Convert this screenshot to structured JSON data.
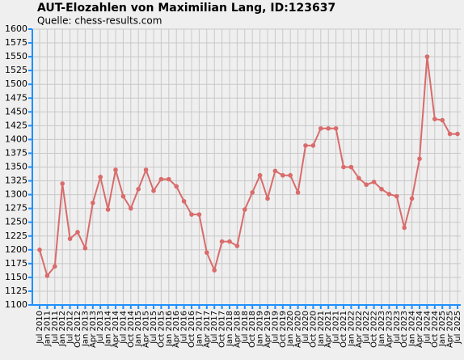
{
  "chart_data": {
    "type": "line",
    "title": "AUT-Elozahlen von Maximilian Lang, ID:123637",
    "subtitle": "Quelle: chess-results.com",
    "categories": [
      "Jul 2010",
      "Jan 2011",
      "Jul 2011",
      "Jan 2012",
      "Jul 2012",
      "Oct 2012",
      "Jan 2013",
      "Apr 2013",
      "Jul 2013",
      "Jan 2014",
      "Apr 2014",
      "Jul 2014",
      "Oct 2014",
      "Jan 2015",
      "Apr 2015",
      "Jul 2015",
      "Oct 2015",
      "Jan 2016",
      "Apr 2016",
      "Jul 2016",
      "Oct 2016",
      "Jan 2017",
      "Apr 2017",
      "Jul 2017",
      "Oct 2017",
      "Jan 2018",
      "Apr 2018",
      "Jul 2018",
      "Oct 2018",
      "Jan 2019",
      "Apr 2019",
      "Jul 2019",
      "Oct 2019",
      "Jan 2020",
      "Apr 2020",
      "Jul 2020",
      "Oct 2020",
      "Jan 2021",
      "Apr 2021",
      "Jul 2021",
      "Oct 2021",
      "Jan 2022",
      "Apr 2022",
      "Jul 2022",
      "Oct 2022",
      "Jan 2023",
      "Apr 2023",
      "Jul 2023",
      "Oct 2023",
      "Jan 2024",
      "Apr 2024",
      "Jul 2024",
      "Oct 2024",
      "Jan 2025",
      "Apr 2025",
      "Jul 2025"
    ],
    "values": [
      1200,
      1153,
      1170,
      1320,
      1220,
      1232,
      1203,
      1285,
      1332,
      1273,
      1345,
      1297,
      1275,
      1310,
      1345,
      1307,
      1328,
      1328,
      1315,
      1288,
      1264,
      1264,
      1195,
      1163,
      1215,
      1215,
      1207,
      1273,
      1304,
      1335,
      1293,
      1343,
      1335,
      1335,
      1304,
      1389,
      1389,
      1420,
      1420,
      1420,
      1350,
      1350,
      1330,
      1318,
      1323,
      1310,
      1301,
      1297,
      1240,
      1293,
      1365,
      1550,
      1437,
      1435,
      1410,
      1410
    ],
    "color": "#d96b6b",
    "ylim": [
      1100,
      1600
    ],
    "yticks": [
      1100,
      1125,
      1150,
      1175,
      1200,
      1225,
      1250,
      1275,
      1300,
      1325,
      1350,
      1375,
      1400,
      1425,
      1450,
      1475,
      1500,
      1525,
      1550,
      1575,
      1600
    ],
    "grid": true
  }
}
